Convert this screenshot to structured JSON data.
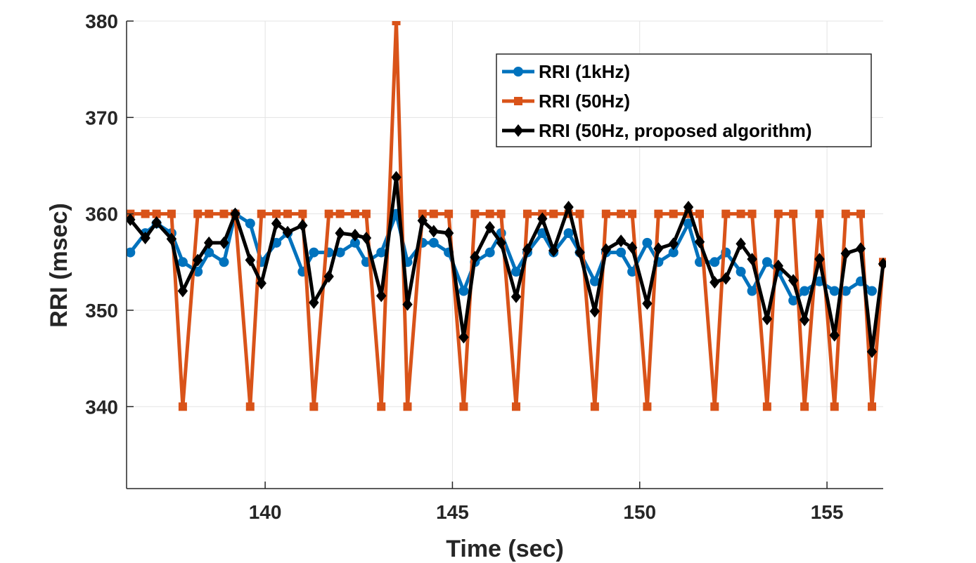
{
  "chart_data": {
    "type": "line",
    "title": "",
    "xlabel": "Time (sec)",
    "ylabel": "RRI (msec)",
    "xlim": [
      136.3,
      156.5
    ],
    "ylim": [
      331.5,
      380
    ],
    "xticks": [
      140,
      145,
      150,
      155
    ],
    "yticks": [
      340,
      350,
      360,
      370,
      380
    ],
    "xtick_labels": [
      "140",
      "145",
      "150",
      "155"
    ],
    "ytick_labels": [
      "340",
      "350",
      "360",
      "370",
      "380"
    ],
    "grid": true,
    "legend_position": "top-right",
    "series": [
      {
        "name": "RRI (1kHz)",
        "color": "#0072BD",
        "marker": "circle",
        "x": [
          136.4,
          136.8,
          137.1,
          137.5,
          137.8,
          138.2,
          138.5,
          138.9,
          139.2,
          139.6,
          139.9,
          140.3,
          140.6,
          141.0,
          141.3,
          141.7,
          142.0,
          142.4,
          142.7,
          143.1,
          143.5,
          143.8,
          144.2,
          144.5,
          144.9,
          145.3,
          145.6,
          146.0,
          146.3,
          146.7,
          147.0,
          147.4,
          147.7,
          148.1,
          148.4,
          148.8,
          149.1,
          149.5,
          149.8,
          150.2,
          150.5,
          150.9,
          151.3,
          151.6,
          152.0,
          152.3,
          152.7,
          153.0,
          153.4,
          153.7,
          154.1,
          154.4,
          154.8,
          155.2,
          155.5,
          155.9,
          156.2
        ],
        "values": [
          356,
          358,
          359,
          358,
          355,
          354,
          356,
          355,
          360,
          359,
          355,
          357,
          358,
          354,
          356,
          356,
          356,
          357,
          355,
          356,
          360,
          355,
          357,
          357,
          356,
          352,
          355,
          356,
          358,
          354,
          356,
          358,
          356,
          358,
          356,
          353,
          356,
          356,
          354,
          357,
          355,
          356,
          359,
          355,
          355,
          356,
          354,
          352,
          355,
          354,
          351,
          352,
          353,
          352,
          352,
          353,
          352
        ]
      },
      {
        "name": "RRI (50Hz)",
        "color": "#D95319",
        "marker": "square",
        "x": [
          136.4,
          136.8,
          137.1,
          137.5,
          137.8,
          138.2,
          138.5,
          138.9,
          139.2,
          139.6,
          139.9,
          140.3,
          140.6,
          141.0,
          141.3,
          141.7,
          142.0,
          142.4,
          142.7,
          143.1,
          143.5,
          143.8,
          144.2,
          144.5,
          144.9,
          145.3,
          145.6,
          146.0,
          146.3,
          146.7,
          147.0,
          147.4,
          147.7,
          148.1,
          148.4,
          148.8,
          149.1,
          149.5,
          149.8,
          150.2,
          150.5,
          150.9,
          151.3,
          151.6,
          152.0,
          152.3,
          152.7,
          153.0,
          153.4,
          153.7,
          154.1,
          154.4,
          154.8,
          155.2,
          155.5,
          155.9,
          156.2,
          156.5
        ],
        "values": [
          360,
          360,
          360,
          360,
          340,
          360,
          360,
          360,
          360,
          340,
          360,
          360,
          360,
          360,
          340,
          360,
          360,
          360,
          360,
          340,
          380,
          340,
          360,
          360,
          360,
          340,
          360,
          360,
          360,
          340,
          360,
          360,
          360,
          360,
          360,
          340,
          360,
          360,
          360,
          340,
          360,
          360,
          360,
          360,
          340,
          360,
          360,
          360,
          340,
          360,
          360,
          340,
          360,
          340,
          360,
          360,
          340,
          355
        ]
      },
      {
        "name": "RRI (50Hz, proposed algorithm)",
        "color": "#000000",
        "marker": "diamond",
        "x": [
          136.4,
          136.8,
          137.1,
          137.5,
          137.8,
          138.2,
          138.5,
          138.9,
          139.2,
          139.6,
          139.9,
          140.3,
          140.6,
          141.0,
          141.3,
          141.7,
          142.0,
          142.4,
          142.7,
          143.1,
          143.5,
          143.8,
          144.2,
          144.5,
          144.9,
          145.3,
          145.6,
          146.0,
          146.3,
          146.7,
          147.0,
          147.4,
          147.7,
          148.1,
          148.4,
          148.8,
          149.1,
          149.5,
          149.8,
          150.2,
          150.5,
          150.9,
          151.3,
          151.6,
          152.0,
          152.3,
          152.7,
          153.0,
          153.4,
          153.7,
          154.1,
          154.4,
          154.8,
          155.2,
          155.5,
          155.9,
          156.2,
          156.5
        ],
        "values": [
          359.4,
          357.5,
          359.1,
          357.4,
          352.0,
          355.2,
          357.0,
          357.0,
          360.0,
          355.2,
          352.8,
          359.0,
          358.1,
          358.8,
          350.8,
          353.5,
          358.0,
          357.8,
          357.5,
          351.5,
          363.8,
          350.6,
          359.3,
          358.2,
          358.0,
          347.2,
          355.5,
          358.6,
          357.0,
          351.4,
          356.3,
          359.5,
          356.2,
          360.7,
          356.0,
          349.9,
          356.3,
          357.2,
          356.5,
          350.7,
          356.4,
          356.9,
          360.7,
          357.1,
          352.9,
          353.3,
          356.9,
          355.3,
          349.1,
          354.6,
          353.1,
          349.0,
          355.3,
          347.4,
          355.9,
          356.4,
          345.7,
          354.8
        ]
      }
    ]
  }
}
